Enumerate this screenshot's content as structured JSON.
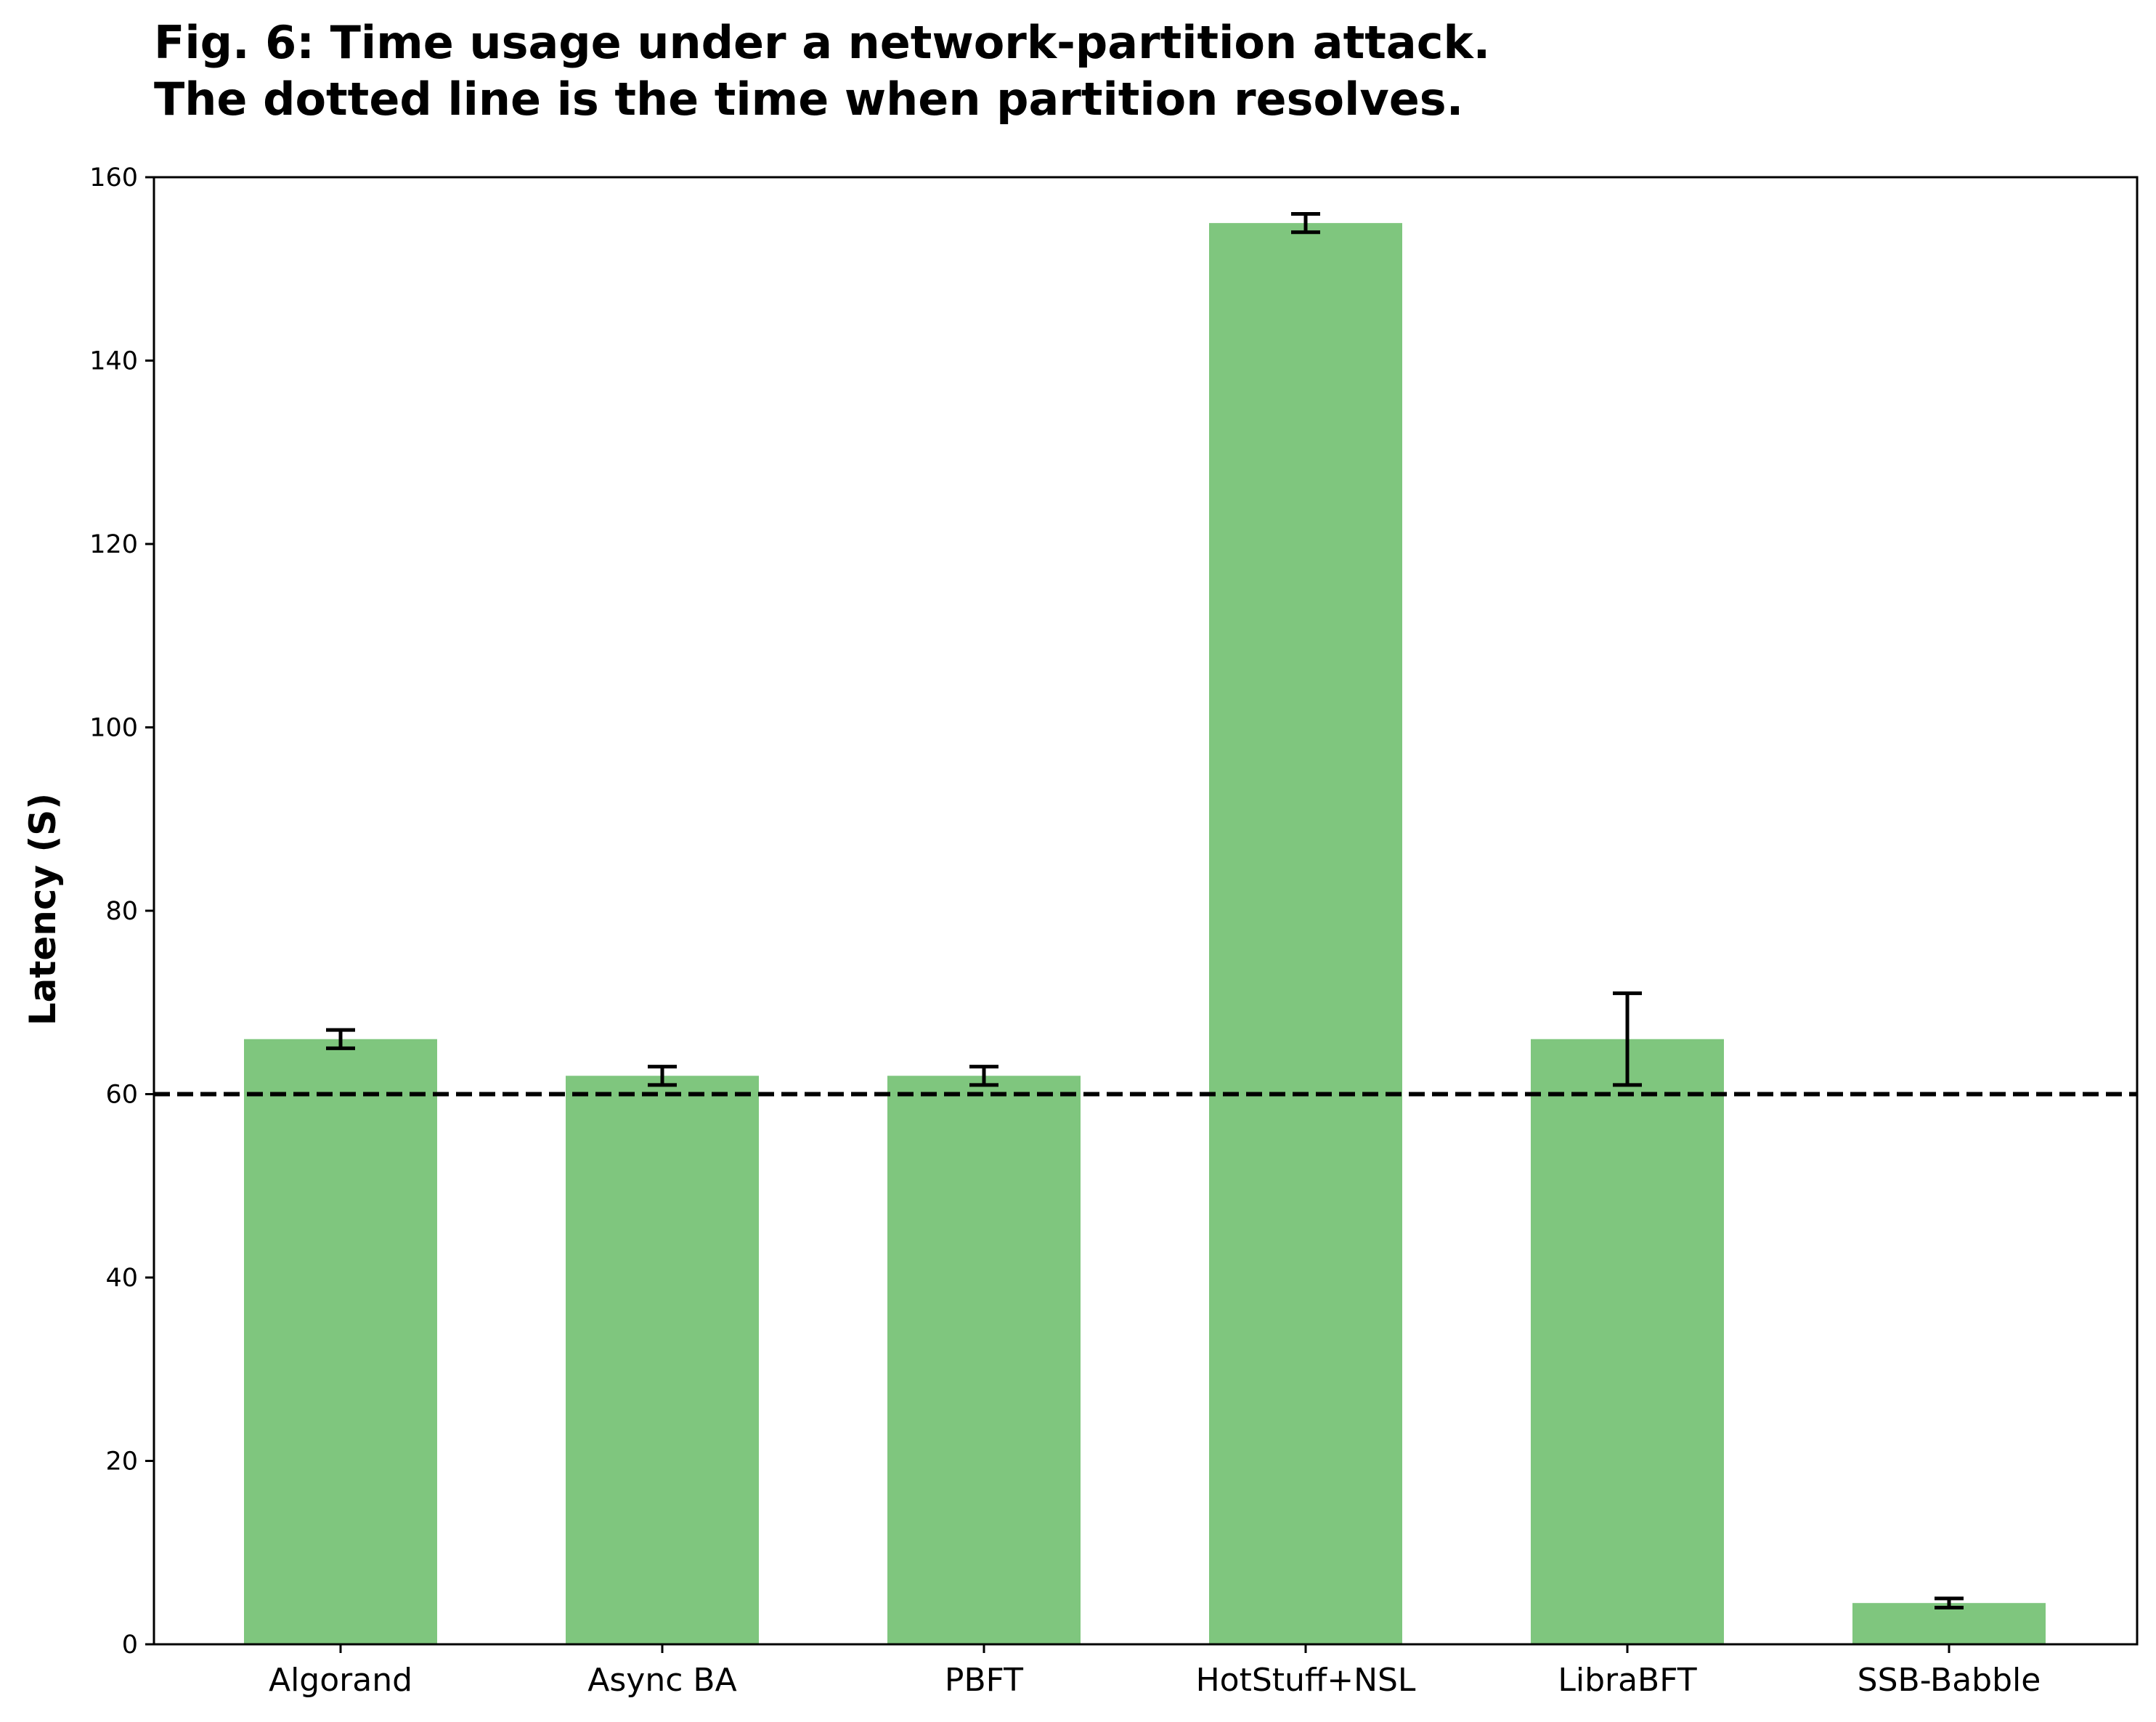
{
  "chart_data": {
    "type": "bar",
    "title_lines": [
      "Fig. 6: Time usage under a network-partition attack.",
      "The dotted line is the time when partition resolves."
    ],
    "xlabel": "",
    "ylabel": "Latency (S)",
    "ylim": [
      0,
      160
    ],
    "yticks": [
      0,
      20,
      40,
      60,
      80,
      100,
      120,
      140,
      160
    ],
    "categories": [
      "Algorand",
      "Async BA",
      "PBFT",
      "HotStuff+NSL",
      "LibraBFT",
      "SSB-Babble"
    ],
    "values": [
      66,
      62,
      62,
      155,
      66,
      4.5
    ],
    "errors": [
      1,
      1,
      1,
      1,
      5,
      0.5
    ],
    "reference_line": {
      "y": 60,
      "style": "dashed",
      "color": "#000000"
    },
    "bar_color": "#7fc67e",
    "grid": false,
    "legend": "none"
  }
}
